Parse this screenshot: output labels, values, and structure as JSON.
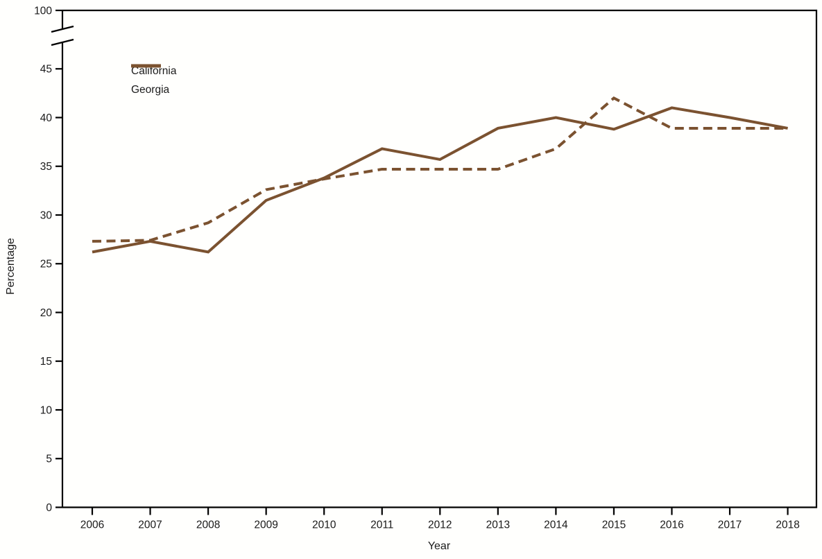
{
  "chart_data": {
    "type": "line",
    "title": "",
    "xlabel": "Year",
    "ylabel": "Percentage",
    "x": [
      2006,
      2007,
      2008,
      2009,
      2010,
      2011,
      2012,
      2013,
      2014,
      2015,
      2016,
      2017,
      2018
    ],
    "series": [
      {
        "name": "California",
        "style": "dashed",
        "values": [
          27.3,
          27.4,
          29.2,
          32.6,
          33.7,
          34.7,
          34.7,
          34.7,
          36.8,
          42.0,
          38.9,
          38.9,
          38.9
        ]
      },
      {
        "name": "Georgia",
        "style": "solid",
        "values": [
          26.2,
          27.3,
          26.2,
          31.5,
          33.8,
          36.8,
          35.7,
          38.9,
          40.0,
          38.8,
          41.0,
          40.0,
          38.9
        ]
      }
    ],
    "y_axis": {
      "ticks": [
        0,
        5,
        10,
        15,
        20,
        25,
        30,
        35,
        40,
        45
      ],
      "break_label": 100,
      "has_break": true,
      "ylim": [
        0,
        47
      ]
    },
    "legend_position": "top-left-inside",
    "grid": false,
    "line_color": "#7B5230",
    "axis_color": "#000000",
    "text_color": "#1a1a1a"
  }
}
